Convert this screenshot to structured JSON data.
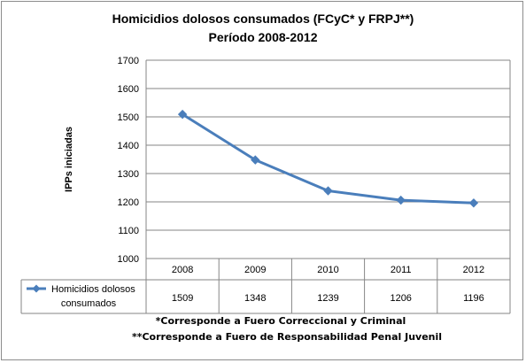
{
  "colors": {
    "series": "#4a7ebb",
    "grid": "#868686",
    "border": "#8c8c8c"
  },
  "chart_data": {
    "type": "line",
    "title": "Homicidios dolosos consumados (FCyC* y FRPJ**)",
    "subtitle": "Período 2008-2012",
    "ylabel": "IPPs iniciadas",
    "xlabel": "",
    "ylim": [
      1000,
      1700
    ],
    "yticks": [
      1000,
      1100,
      1200,
      1300,
      1400,
      1500,
      1600,
      1700
    ],
    "grid": true,
    "legend_position": "data-table",
    "categories": [
      "2008",
      "2009",
      "2010",
      "2011",
      "2012"
    ],
    "series": [
      {
        "name": "Homicidios dolosos consumados",
        "name_lines": [
          "Homicidios dolosos",
          "consumados"
        ],
        "values": [
          1509,
          1348,
          1239,
          1206,
          1196
        ]
      }
    ]
  },
  "footnotes": [
    "*Corresponde a Fuero Correccional  y Criminal",
    "**Corresponde a Fuero de Responsabilidad  Penal  Juvenil"
  ]
}
